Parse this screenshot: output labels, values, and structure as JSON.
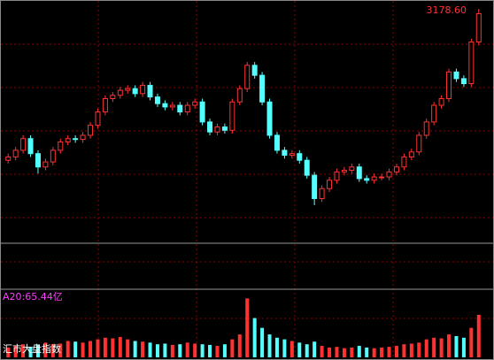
{
  "chart_data": {
    "type": "candlestick",
    "max_label": "3178.60",
    "volume_label": "A20:65.44亿",
    "index_name": "汇市大盘指数",
    "up_color": "#ff3232",
    "down_color": "#54ffff",
    "ylim": [
      1772,
      3232
    ],
    "vlim": [
      0,
      200
    ],
    "open": [
      2270,
      2290,
      2330,
      2400,
      2310,
      2230,
      2260,
      2330,
      2380,
      2400,
      2395,
      2420,
      2480,
      2560,
      2640,
      2660,
      2690,
      2700,
      2670,
      2720,
      2650,
      2610,
      2590,
      2600,
      2560,
      2600,
      2620,
      2500,
      2440,
      2470,
      2450,
      2620,
      2700,
      2840,
      2780,
      2620,
      2420,
      2330,
      2300,
      2310,
      2270,
      2180,
      2040,
      2100,
      2150,
      2200,
      2210,
      2230,
      2160,
      2150,
      2170,
      2170,
      2200,
      2230,
      2290,
      2320,
      2420,
      2500,
      2600,
      2640,
      2800,
      2760,
      2730,
      2980
    ],
    "close": [
      2290,
      2330,
      2400,
      2310,
      2230,
      2260,
      2330,
      2380,
      2400,
      2395,
      2420,
      2480,
      2560,
      2640,
      2660,
      2690,
      2700,
      2670,
      2720,
      2650,
      2610,
      2590,
      2600,
      2560,
      2600,
      2620,
      2500,
      2440,
      2470,
      2450,
      2620,
      2700,
      2840,
      2780,
      2620,
      2420,
      2330,
      2300,
      2310,
      2270,
      2180,
      2040,
      2100,
      2150,
      2200,
      2210,
      2230,
      2160,
      2150,
      2170,
      2170,
      2200,
      2230,
      2290,
      2320,
      2420,
      2500,
      2600,
      2640,
      2800,
      2760,
      2730,
      2980,
      3150
    ],
    "high": [
      2310,
      2350,
      2420,
      2420,
      2330,
      2280,
      2350,
      2400,
      2420,
      2420,
      2440,
      2500,
      2580,
      2660,
      2680,
      2710,
      2720,
      2720,
      2740,
      2740,
      2670,
      2630,
      2620,
      2620,
      2620,
      2640,
      2640,
      2520,
      2490,
      2490,
      2640,
      2720,
      2860,
      2860,
      2800,
      2640,
      2440,
      2350,
      2330,
      2330,
      2290,
      2200,
      2120,
      2170,
      2220,
      2230,
      2250,
      2250,
      2180,
      2190,
      2190,
      2220,
      2250,
      2310,
      2340,
      2440,
      2520,
      2620,
      2660,
      2820,
      2820,
      2780,
      3000,
      3178.6
    ],
    "low": [
      2250,
      2270,
      2310,
      2290,
      2190,
      2210,
      2240,
      2310,
      2360,
      2375,
      2375,
      2400,
      2460,
      2540,
      2620,
      2640,
      2670,
      2650,
      2650,
      2630,
      2590,
      2570,
      2570,
      2540,
      2540,
      2580,
      2480,
      2420,
      2420,
      2430,
      2430,
      2600,
      2680,
      2760,
      2600,
      2400,
      2310,
      2280,
      2280,
      2250,
      2160,
      2000,
      2020,
      2080,
      2130,
      2180,
      2190,
      2140,
      2130,
      2130,
      2150,
      2150,
      2180,
      2210,
      2270,
      2300,
      2400,
      2480,
      2580,
      2620,
      2740,
      2710,
      2710,
      2960
    ],
    "volume": [
      30,
      35,
      40,
      32,
      38,
      45,
      40,
      42,
      50,
      48,
      45,
      50,
      55,
      60,
      58,
      62,
      55,
      50,
      48,
      45,
      40,
      42,
      38,
      40,
      45,
      42,
      40,
      38,
      35,
      40,
      55,
      70,
      180,
      120,
      90,
      70,
      60,
      55,
      50,
      45,
      40,
      48,
      35,
      30,
      32,
      28,
      30,
      35,
      30,
      28,
      30,
      32,
      35,
      40,
      42,
      45,
      55,
      60,
      58,
      70,
      65,
      60,
      90,
      130
    ]
  }
}
